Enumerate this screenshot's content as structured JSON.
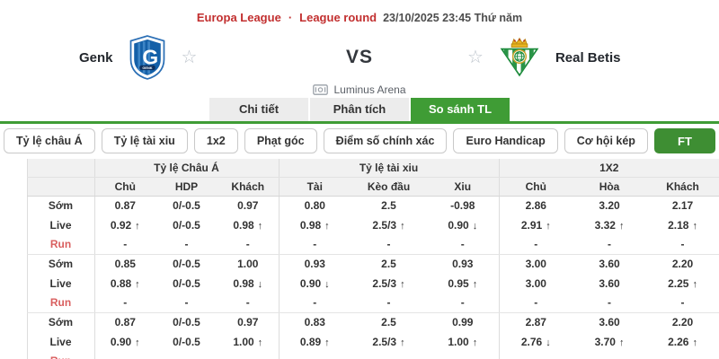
{
  "header": {
    "league": "Europa League",
    "dot": "·",
    "round": "League round",
    "datetime": "23/10/2025 23:45 Thứ năm"
  },
  "match": {
    "home_name": "Genk",
    "away_name": "Real Betis",
    "vs": "VS",
    "venue": "Luminus Arena"
  },
  "icons": {
    "favorite_star": "☆",
    "trend_up": "↑",
    "trend_down": "↓",
    "add": "+"
  },
  "tabs": [
    {
      "label": "Chi tiết",
      "active": false
    },
    {
      "label": "Phân tích",
      "active": false
    },
    {
      "label": "So sánh TL",
      "active": true
    }
  ],
  "filters": {
    "asian_odds": "Tỷ lệ châu Á",
    "over_under": "Tỷ lệ tài xiu",
    "one_x_two": "1x2",
    "corners": "Phạt góc",
    "correct_score": "Điểm số chính xác",
    "euro_handicap": "Euro Handicap",
    "double_chance": "Cơ hội kép",
    "ft": "FT"
  },
  "table": {
    "groups": [
      {
        "label": "Tỷ lệ Châu Á",
        "cols": [
          "Chủ",
          "HDP",
          "Khách"
        ]
      },
      {
        "label": "Tỷ lệ tài xiu",
        "cols": [
          "Tài",
          "Kèo đầu",
          "Xiu"
        ]
      },
      {
        "label": "1X2",
        "cols": [
          "Chủ",
          "Hòa",
          "Khách"
        ]
      }
    ],
    "bookmakers": [
      {
        "rows": [
          {
            "label": "Sớm",
            "cells": [
              {
                "v": "0.87",
                "c": "dark"
              },
              {
                "v": "0/-0.5",
                "c": "dark"
              },
              {
                "v": "0.97",
                "c": "dark"
              },
              {
                "v": "0.80",
                "c": "dark"
              },
              {
                "v": "2.5",
                "c": "dark"
              },
              {
                "v": "-0.98",
                "c": "dark"
              },
              {
                "v": "2.86",
                "c": "dark"
              },
              {
                "v": "3.20",
                "c": "dark"
              },
              {
                "v": "2.17",
                "c": "dark"
              }
            ]
          },
          {
            "label": "Live",
            "cells": [
              {
                "v": "0.92",
                "c": "green",
                "a": "up"
              },
              {
                "v": "0/-0.5",
                "c": "dark"
              },
              {
                "v": "0.98",
                "c": "green",
                "a": "up"
              },
              {
                "v": "0.98",
                "c": "green",
                "a": "up"
              },
              {
                "v": "2.5/3",
                "c": "green",
                "a": "up"
              },
              {
                "v": "0.90",
                "c": "red",
                "a": "down"
              },
              {
                "v": "2.91",
                "c": "green",
                "a": "up"
              },
              {
                "v": "3.32",
                "c": "green",
                "a": "up"
              },
              {
                "v": "2.18",
                "c": "green",
                "a": "up"
              }
            ]
          },
          {
            "label": "Run",
            "cells": [
              {
                "v": "-",
                "c": "muted"
              },
              {
                "v": "-",
                "c": "muted"
              },
              {
                "v": "-",
                "c": "muted"
              },
              {
                "v": "-",
                "c": "muted"
              },
              {
                "v": "-",
                "c": "muted"
              },
              {
                "v": "-",
                "c": "muted"
              },
              {
                "v": "-",
                "c": "muted"
              },
              {
                "v": "-",
                "c": "muted"
              },
              {
                "v": "-",
                "c": "muted"
              }
            ]
          }
        ]
      },
      {
        "rows": [
          {
            "label": "Sớm",
            "cells": [
              {
                "v": "0.85",
                "c": "dark"
              },
              {
                "v": "0/-0.5",
                "c": "dark"
              },
              {
                "v": "1.00",
                "c": "dark"
              },
              {
                "v": "0.93",
                "c": "dark"
              },
              {
                "v": "2.5",
                "c": "dark"
              },
              {
                "v": "0.93",
                "c": "dark"
              },
              {
                "v": "3.00",
                "c": "dark"
              },
              {
                "v": "3.60",
                "c": "dark"
              },
              {
                "v": "2.20",
                "c": "dark"
              }
            ]
          },
          {
            "label": "Live",
            "cells": [
              {
                "v": "0.88",
                "c": "green",
                "a": "up"
              },
              {
                "v": "0/-0.5",
                "c": "dark"
              },
              {
                "v": "0.98",
                "c": "red",
                "a": "down"
              },
              {
                "v": "0.90",
                "c": "red",
                "a": "down"
              },
              {
                "v": "2.5/3",
                "c": "green",
                "a": "up"
              },
              {
                "v": "0.95",
                "c": "green",
                "a": "up"
              },
              {
                "v": "3.00",
                "c": "dark"
              },
              {
                "v": "3.60",
                "c": "dark"
              },
              {
                "v": "2.25",
                "c": "green",
                "a": "up"
              }
            ]
          },
          {
            "label": "Run",
            "cells": [
              {
                "v": "-",
                "c": "muted"
              },
              {
                "v": "-",
                "c": "muted"
              },
              {
                "v": "-",
                "c": "muted"
              },
              {
                "v": "-",
                "c": "muted"
              },
              {
                "v": "-",
                "c": "muted"
              },
              {
                "v": "-",
                "c": "muted"
              },
              {
                "v": "-",
                "c": "muted"
              },
              {
                "v": "-",
                "c": "muted"
              },
              {
                "v": "-",
                "c": "muted"
              }
            ]
          }
        ]
      },
      {
        "rows": [
          {
            "label": "Sớm",
            "cells": [
              {
                "v": "0.87",
                "c": "dark"
              },
              {
                "v": "0/-0.5",
                "c": "dark"
              },
              {
                "v": "0.97",
                "c": "dark"
              },
              {
                "v": "0.83",
                "c": "dark"
              },
              {
                "v": "2.5",
                "c": "dark"
              },
              {
                "v": "0.99",
                "c": "dark"
              },
              {
                "v": "2.87",
                "c": "dark"
              },
              {
                "v": "3.60",
                "c": "dark"
              },
              {
                "v": "2.20",
                "c": "dark"
              }
            ]
          },
          {
            "label": "Live",
            "cells": [
              {
                "v": "0.90",
                "c": "green",
                "a": "up"
              },
              {
                "v": "0/-0.5",
                "c": "dark"
              },
              {
                "v": "1.00",
                "c": "green",
                "a": "up"
              },
              {
                "v": "0.89",
                "c": "green",
                "a": "up"
              },
              {
                "v": "2.5/3",
                "c": "green",
                "a": "up"
              },
              {
                "v": "1.00",
                "c": "green",
                "a": "up"
              },
              {
                "v": "2.76",
                "c": "red",
                "a": "down"
              },
              {
                "v": "3.70",
                "c": "green",
                "a": "up"
              },
              {
                "v": "2.26",
                "c": "green",
                "a": "up"
              }
            ]
          },
          {
            "label": "Run",
            "cells": [
              {
                "v": "-",
                "c": "muted"
              },
              {
                "v": "-",
                "c": "muted"
              },
              {
                "v": "-",
                "c": "muted"
              },
              {
                "v": "-",
                "c": "muted"
              },
              {
                "v": "-",
                "c": "muted"
              },
              {
                "v": "-",
                "c": "muted"
              },
              {
                "v": "-",
                "c": "muted"
              },
              {
                "v": "-",
                "c": "muted"
              },
              {
                "v": "-",
                "c": "muted"
              }
            ]
          }
        ]
      }
    ]
  },
  "colors": {
    "accent_green": "#3f9c35",
    "ft_green": "#3e8e33",
    "header_red": "#c22f2f",
    "up_green": "#2b9e2b",
    "down_red": "#e23b3b",
    "run_red": "#d95f5f",
    "header_bg": "#f1f1f1"
  }
}
